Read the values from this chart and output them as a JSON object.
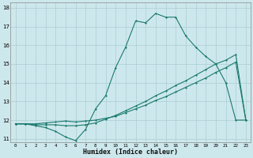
{
  "xlabel": "Humidex (Indice chaleur)",
  "ylabel": "",
  "background_color": "#cde8ec",
  "line_color": "#1a7a6e",
  "grid_color": "#aacdd4",
  "xlim": [
    -0.5,
    23.5
  ],
  "ylim": [
    10.8,
    18.3
  ],
  "xticks": [
    0,
    1,
    2,
    3,
    4,
    5,
    6,
    7,
    8,
    9,
    10,
    11,
    12,
    13,
    14,
    15,
    16,
    17,
    18,
    19,
    20,
    21,
    22,
    23
  ],
  "yticks": [
    11,
    12,
    13,
    14,
    15,
    16,
    17,
    18
  ],
  "line1_x": [
    0,
    1,
    2,
    3,
    4,
    5,
    6,
    7,
    8,
    9,
    10,
    11,
    12,
    13,
    14,
    15,
    16,
    17,
    18,
    19,
    20,
    21,
    22,
    23
  ],
  "line1_y": [
    11.8,
    11.8,
    11.7,
    11.6,
    11.4,
    11.1,
    10.9,
    11.5,
    12.6,
    13.3,
    14.8,
    15.9,
    17.3,
    17.2,
    17.7,
    17.5,
    17.5,
    16.5,
    15.9,
    15.4,
    15.0,
    14.0,
    12.0,
    12.0
  ],
  "line2_x": [
    0,
    1,
    2,
    3,
    4,
    5,
    6,
    7,
    8,
    9,
    10,
    11,
    12,
    13,
    14,
    15,
    16,
    17,
    18,
    19,
    20,
    21,
    22,
    23
  ],
  "line2_y": [
    11.8,
    11.8,
    11.75,
    11.75,
    11.75,
    11.7,
    11.7,
    11.75,
    11.85,
    12.05,
    12.25,
    12.5,
    12.75,
    13.0,
    13.3,
    13.55,
    13.85,
    14.1,
    14.4,
    14.7,
    15.0,
    15.2,
    15.5,
    12.0
  ],
  "line3_x": [
    0,
    1,
    2,
    3,
    4,
    5,
    6,
    7,
    8,
    9,
    10,
    11,
    12,
    13,
    14,
    15,
    16,
    17,
    18,
    19,
    20,
    21,
    22,
    23
  ],
  "line3_y": [
    11.8,
    11.8,
    11.8,
    11.85,
    11.9,
    11.95,
    11.9,
    11.95,
    12.0,
    12.1,
    12.2,
    12.4,
    12.6,
    12.8,
    13.05,
    13.25,
    13.5,
    13.75,
    14.0,
    14.25,
    14.55,
    14.8,
    15.1,
    12.0
  ]
}
